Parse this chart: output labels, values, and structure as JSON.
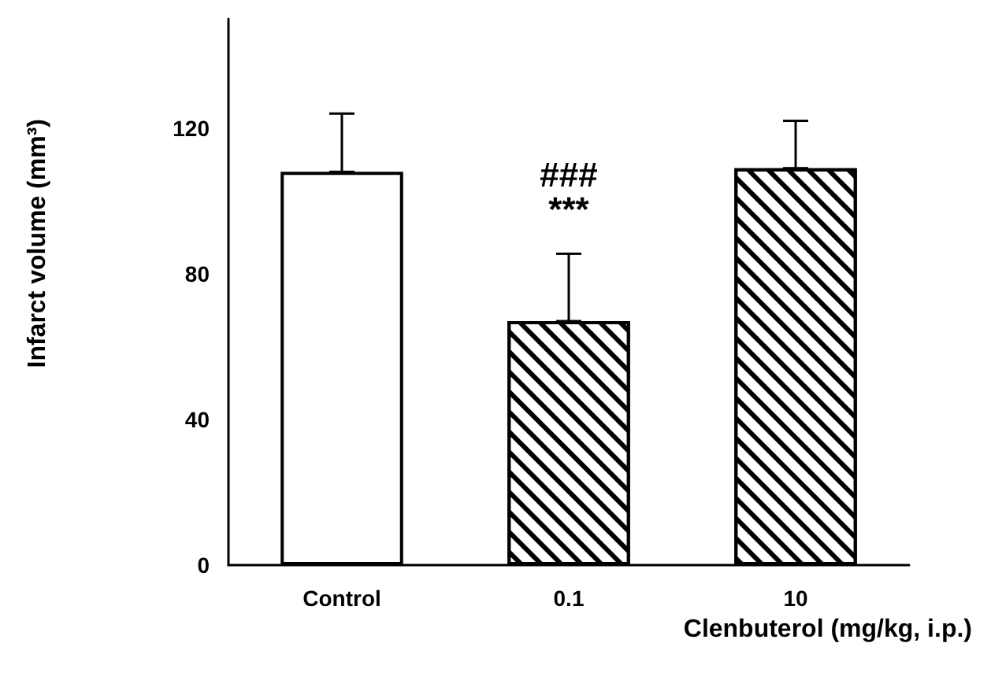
{
  "chart_data": {
    "type": "bar",
    "xlabel": "Clenbuterol (mg/kg, i.p.)",
    "ylabel": "Infarct volume (mm³)",
    "categories": [
      "Control",
      "0.1",
      "10"
    ],
    "values": [
      108,
      67,
      109
    ],
    "colors": [
      "#ffffff",
      "#000000",
      "#000000"
    ],
    "errors": [
      [
        108,
        124
      ],
      [
        67,
        85.5
      ],
      [
        109,
        122
      ]
    ],
    "ylim": [
      0,
      150
    ],
    "yticks": [
      0,
      40,
      80,
      120
    ],
    "grid": false,
    "annotations": [
      "###",
      "***"
    ]
  }
}
